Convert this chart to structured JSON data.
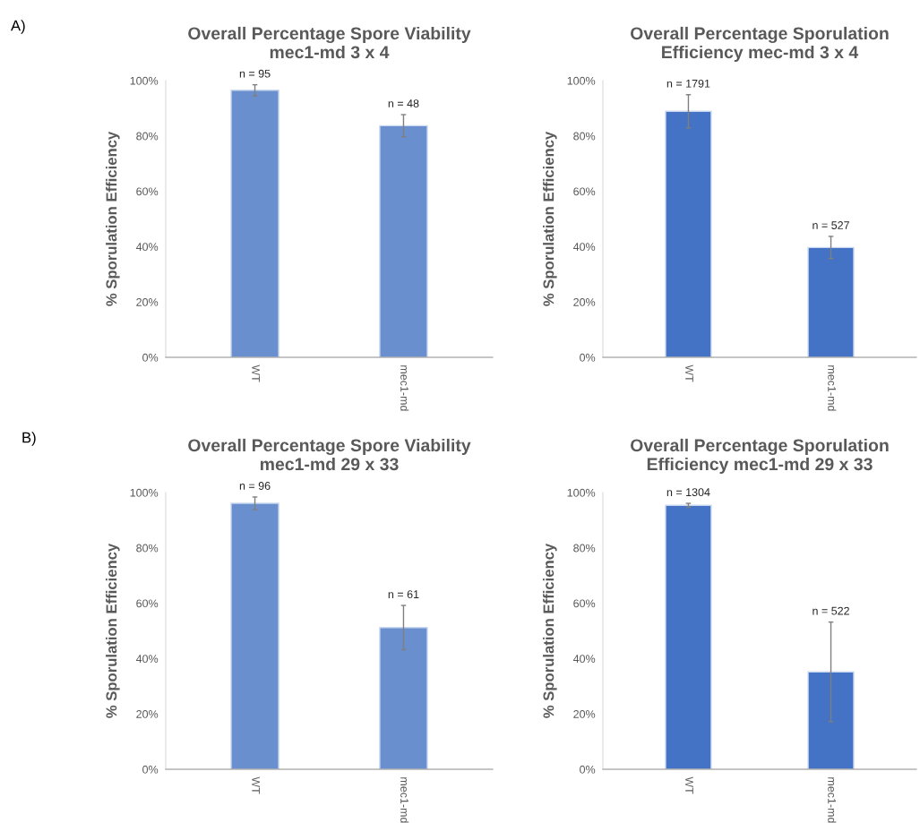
{
  "chart_data": [
    {
      "type": "bar",
      "title": "Overall Percentage Spore Viability mec1-md 3 x 4",
      "ylabel": "% Sporulation Efficiency",
      "categories": [
        "WT",
        "mec1-md"
      ],
      "values": [
        96.5,
        83.7
      ],
      "errors": [
        2,
        4
      ],
      "color": "#6a8fcf",
      "ylim": [
        0,
        100
      ],
      "yticks": [
        {
          "value": 0,
          "label": "0%"
        },
        {
          "value": 20,
          "label": "20%"
        },
        {
          "value": 40,
          "label": "40%"
        },
        {
          "value": 60,
          "label": "60%"
        },
        {
          "value": 80,
          "label": "80%"
        },
        {
          "value": 100,
          "label": "100%"
        }
      ],
      "grid": false,
      "annotations": [
        "A)",
        {
          "text": "n = 95",
          "x": "WT",
          "y": 98.5
        },
        {
          "text": "n = 48",
          "x": "mec1-md",
          "y": 87.7
        }
      ]
    },
    {
      "type": "bar",
      "title": "Overall Percentage Sporulation Efficiency mec-md 3 x 4",
      "ylabel": "% Sporulation Efficiency",
      "categories": [
        "WT",
        "mec1-md"
      ],
      "values": [
        88.9,
        39.7
      ],
      "errors": [
        6,
        4
      ],
      "color": "#4472c4",
      "ylim": [
        0,
        100
      ],
      "yticks": [
        {
          "value": 0,
          "label": "0%"
        },
        {
          "value": 20,
          "label": "20%"
        },
        {
          "value": 40,
          "label": "40%"
        },
        {
          "value": 60,
          "label": "60%"
        },
        {
          "value": 80,
          "label": "80%"
        },
        {
          "value": 100,
          "label": "100%"
        }
      ],
      "grid": false,
      "annotations": [
        {
          "text": "n = 1791",
          "x": "WT",
          "y": 94.9
        },
        {
          "text": "n = 527",
          "x": "mec1-md",
          "y": 43.7
        }
      ]
    },
    {
      "type": "bar",
      "title": "Overall Percentage Spore Viability mec1-md 29 x 33",
      "ylabel": "% Sporulation Efficiency",
      "categories": [
        "WT",
        "mec1-md"
      ],
      "values": [
        96.1,
        51.2
      ],
      "errors": [
        2.3,
        8
      ],
      "color": "#6a8fcf",
      "ylim": [
        0,
        100
      ],
      "yticks": [
        {
          "value": 0,
          "label": "0%"
        },
        {
          "value": 20,
          "label": "20%"
        },
        {
          "value": 40,
          "label": "40%"
        },
        {
          "value": 60,
          "label": "60%"
        },
        {
          "value": 80,
          "label": "80%"
        },
        {
          "value": 100,
          "label": "100%"
        }
      ],
      "grid": false,
      "annotations": [
        "B)",
        {
          "text": "n = 96",
          "x": "WT",
          "y": 98.4
        },
        {
          "text": "n = 61",
          "x": "mec1-md",
          "y": 59.2
        }
      ]
    },
    {
      "type": "bar",
      "title": "Overall Percentage Sporulation Efficiency mec1-md 29 x 33",
      "ylabel": "% Sporulation Efficiency",
      "categories": [
        "WT",
        "mec1-md"
      ],
      "values": [
        95.4,
        35.2
      ],
      "errors": [
        0.7,
        18
      ],
      "color": "#4472c4",
      "ylim": [
        0,
        100
      ],
      "yticks": [
        {
          "value": 0,
          "label": "0%"
        },
        {
          "value": 20,
          "label": "20%"
        },
        {
          "value": 40,
          "label": "40%"
        },
        {
          "value": 60,
          "label": "60%"
        },
        {
          "value": 80,
          "label": "80%"
        },
        {
          "value": 100,
          "label": "100%"
        }
      ],
      "grid": false,
      "annotations": [
        {
          "text": "n = 1304",
          "x": "WT",
          "y": 96.1
        },
        {
          "text": "n = 522",
          "x": "mec1-md",
          "y": 53.2
        }
      ]
    }
  ]
}
